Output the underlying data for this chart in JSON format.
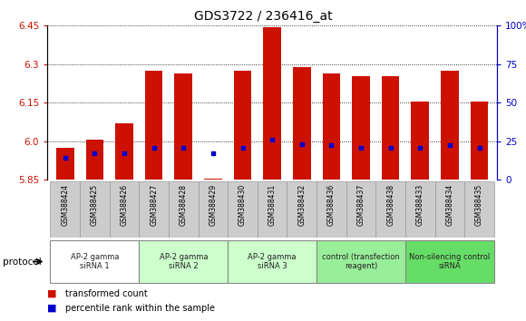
{
  "title": "GDS3722 / 236416_at",
  "samples": [
    "GSM388424",
    "GSM388425",
    "GSM388426",
    "GSM388427",
    "GSM388428",
    "GSM388429",
    "GSM388430",
    "GSM388431",
    "GSM388432",
    "GSM388436",
    "GSM388437",
    "GSM388438",
    "GSM388433",
    "GSM388434",
    "GSM388435"
  ],
  "red_values": [
    5.975,
    6.005,
    6.07,
    6.275,
    6.265,
    5.855,
    6.275,
    6.445,
    6.29,
    6.265,
    6.255,
    6.255,
    6.155,
    6.275,
    6.155
  ],
  "blue_values": [
    5.935,
    5.955,
    5.955,
    5.975,
    5.975,
    5.955,
    5.975,
    6.005,
    5.99,
    5.985,
    5.975,
    5.975,
    5.975,
    5.985,
    5.975
  ],
  "y_min": 5.85,
  "y_max": 6.45,
  "y_ticks_left": [
    5.85,
    6.0,
    6.15,
    6.3,
    6.45
  ],
  "y_ticks_right": [
    0,
    25,
    50,
    75,
    100
  ],
  "bar_color": "#cc1100",
  "dot_color": "#0000cc",
  "groups": [
    {
      "label": "AP-2 gamma\nsiRNA 1",
      "indices": [
        0,
        1,
        2
      ],
      "color": "#ffffff"
    },
    {
      "label": "AP-2 gamma\nsiRNA 2",
      "indices": [
        3,
        4,
        5
      ],
      "color": "#ccffcc"
    },
    {
      "label": "AP-2 gamma\nsiRNA 3",
      "indices": [
        6,
        7,
        8
      ],
      "color": "#ccffcc"
    },
    {
      "label": "control (transfection\nreagent)",
      "indices": [
        9,
        10,
        11
      ],
      "color": "#99ee99"
    },
    {
      "label": "Non-silencing control\nsiRNA",
      "indices": [
        12,
        13,
        14
      ],
      "color": "#66dd66"
    }
  ],
  "protocol_label": "protocol",
  "legend_red": "transformed count",
  "legend_blue": "percentile rank within the sample",
  "title_fontsize": 10,
  "axis_label_color_left": "#cc1100",
  "axis_label_color_right": "#0000cc",
  "sample_box_color": "#cccccc",
  "sample_box_edge": "#999999"
}
